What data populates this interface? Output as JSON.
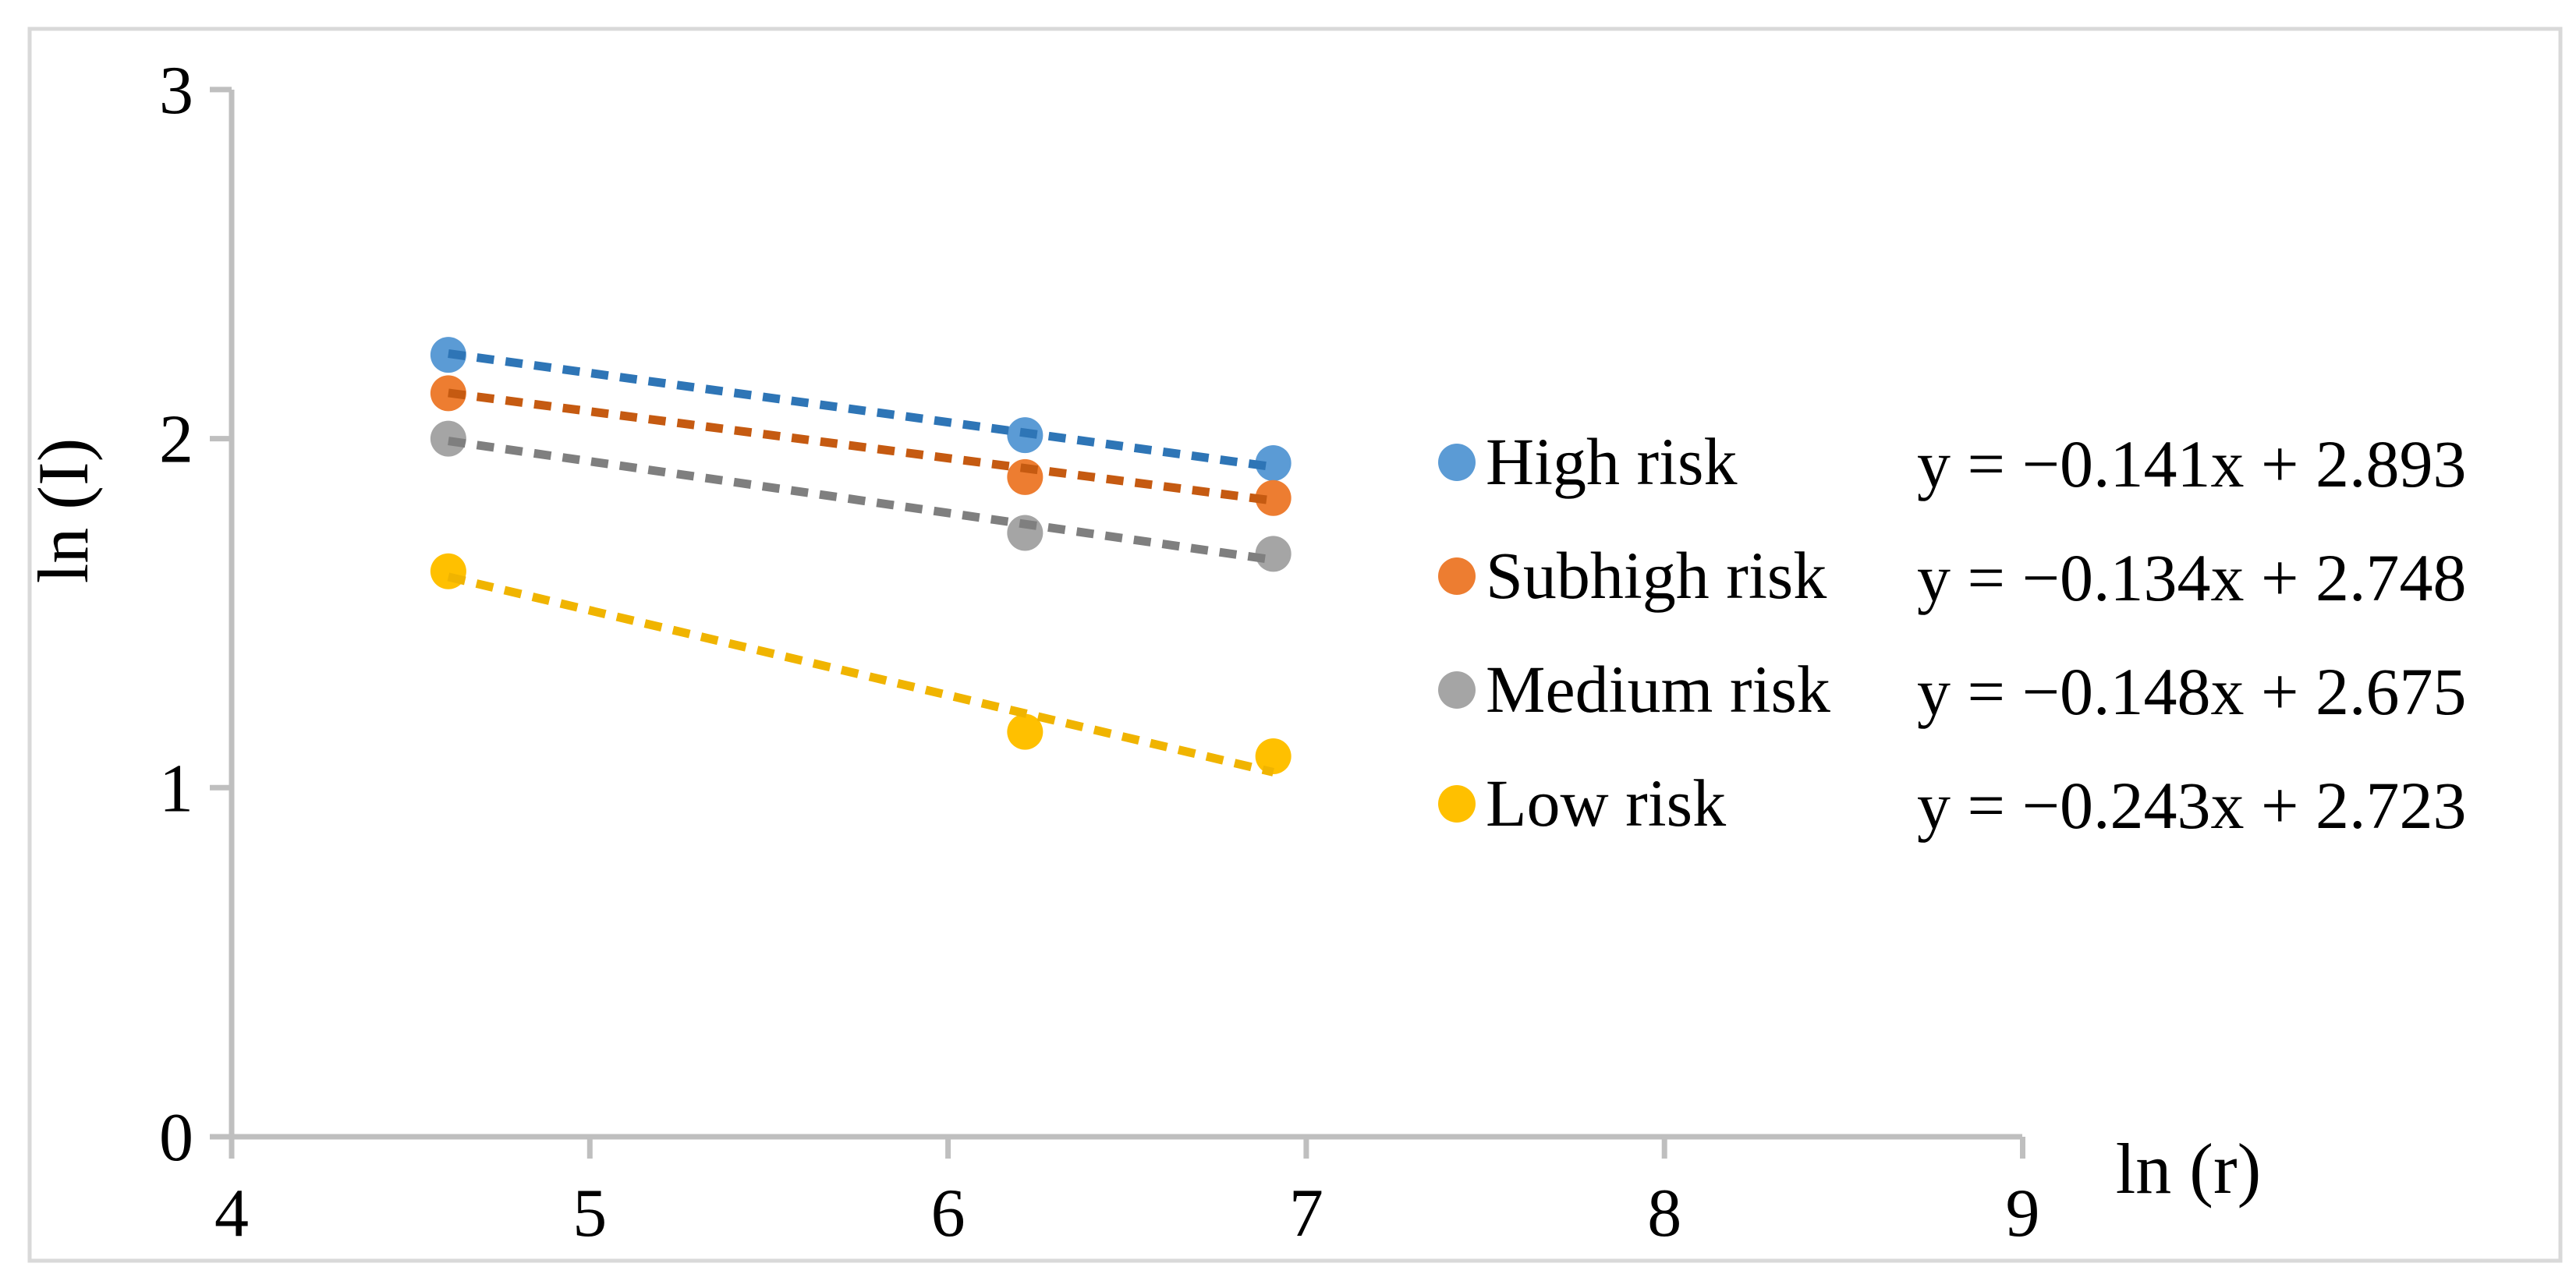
{
  "figure": {
    "border_color": "#D9D9D9",
    "axis_color": "#BFBFBF",
    "background": "#FFFFFF",
    "text_color": "#000000"
  },
  "chart_data": {
    "type": "scatter",
    "title": "",
    "xlabel": "ln (r)",
    "ylabel": "ln (I)",
    "xlim": [
      4,
      9
    ],
    "ylim": [
      0,
      3
    ],
    "x_ticks": [
      4,
      5,
      6,
      7,
      8,
      9
    ],
    "y_ticks": [
      0,
      1,
      2,
      3
    ],
    "grid": false,
    "legend_position": "right",
    "x": [
      4.605,
      6.215,
      6.908
    ],
    "series": [
      {
        "name": "High risk",
        "marker_color": "#5B9BD5",
        "trend_color": "#2E75B6",
        "values": [
          2.24,
          2.01,
          1.93
        ],
        "trend": {
          "slope": -0.141,
          "intercept": 2.893
        },
        "equation": "y = −0.141x + 2.893"
      },
      {
        "name": "Subhigh risk",
        "marker_color": "#ED7D31",
        "trend_color": "#C55A11",
        "values": [
          2.13,
          1.89,
          1.83
        ],
        "trend": {
          "slope": -0.134,
          "intercept": 2.748
        },
        "equation": "y = −0.134x + 2.748"
      },
      {
        "name": "Medium risk",
        "marker_color": "#A5A5A5",
        "trend_color": "#7F7F7F",
        "values": [
          2.0,
          1.73,
          1.67
        ],
        "trend": {
          "slope": -0.148,
          "intercept": 2.675
        },
        "equation": "y = −0.148x + 2.675"
      },
      {
        "name": "Low risk",
        "marker_color": "#FFC000",
        "trend_color": "#F0B400",
        "values": [
          1.62,
          1.16,
          1.09
        ],
        "trend": {
          "slope": -0.243,
          "intercept": 2.723
        },
        "equation": "y = −0.243x + 2.723"
      }
    ]
  }
}
